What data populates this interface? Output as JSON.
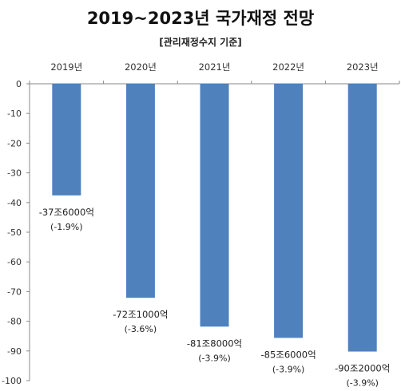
{
  "title": "2019~2023년 국가재정 전망",
  "subtitle": "[관리재정수지 기준]",
  "chart_data": {
    "type": "bar",
    "categories": [
      "2019년",
      "2020년",
      "2021년",
      "2022년",
      "2023년"
    ],
    "values": [
      -37.6,
      -72.1,
      -81.8,
      -85.6,
      -90.2
    ],
    "data_labels": [
      "-37조6000억",
      "-72조1000억",
      "-81조8000억",
      "-85조6000억",
      "-90조2000억"
    ],
    "percent_labels": [
      "(-1.9%)",
      "(-3.6%)",
      "(-3.9%)",
      "(-3.9%)",
      "(-3.9%)"
    ],
    "ylim": [
      -100,
      0
    ],
    "yticks": [
      0,
      -10,
      -20,
      -30,
      -40,
      -50,
      -60,
      -70,
      -80,
      -90,
      -100
    ],
    "x_axis_position": "top",
    "grid": false,
    "legend": "none",
    "bar_color": "#4f81bd"
  }
}
